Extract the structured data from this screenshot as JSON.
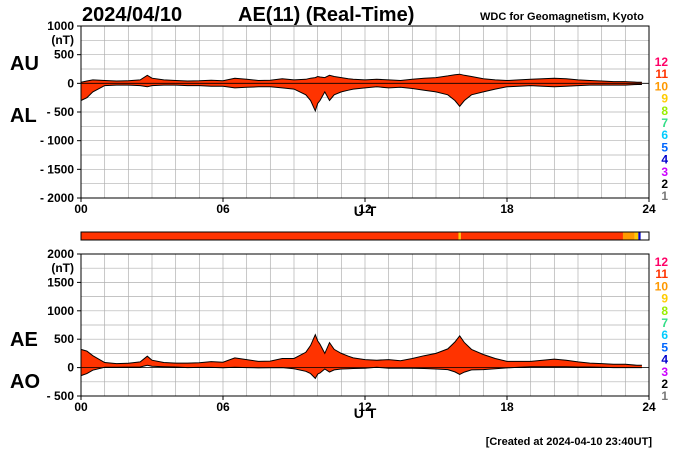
{
  "header": {
    "date": "2024/04/10",
    "title": "AE(11) (Real-Time)",
    "organization": "WDC for Geomagnetism, Kyoto"
  },
  "footer": {
    "created": "[Created at 2024-04-10 23:40UT]"
  },
  "colors": {
    "fill": "#ff3300",
    "grid": "#b0b0b0",
    "legend": [
      "#ff0066",
      "#ff3300",
      "#ff9900",
      "#ffcc00",
      "#99ee00",
      "#33dd88",
      "#00ccff",
      "#0066ff",
      "#0000cc",
      "#cc00ff",
      "#000000",
      "#777777",
      "#cccccc"
    ]
  },
  "chart_data": [
    {
      "id": "top",
      "type": "area",
      "title": "AU / AL",
      "xlabel": "U T",
      "ylabel_units": "(nT)",
      "ylim": [
        -2000,
        1000
      ],
      "yticks": [
        1000,
        500,
        0,
        -500,
        -1000,
        -1500,
        -2000
      ],
      "ytick_labels": [
        "1000",
        "500",
        "0",
        "- 500",
        "- 1000",
        "- 1500",
        "- 2000"
      ],
      "xlim": [
        0,
        24
      ],
      "xticks": [
        0,
        6,
        12,
        18,
        24
      ],
      "xtick_labels": [
        "00",
        "06",
        "12",
        "18",
        "24"
      ],
      "upper_label": "AU",
      "lower_label": "AL",
      "x": [
        0,
        0.25,
        0.5,
        1,
        1.5,
        2,
        2.5,
        2.8,
        3,
        3.5,
        4,
        4.5,
        5,
        5.5,
        6,
        6.5,
        7,
        7.5,
        8,
        8.5,
        9,
        9.5,
        9.7,
        9.9,
        10,
        10.1,
        10.3,
        10.5,
        10.7,
        11,
        11.3,
        11.5,
        12,
        12.5,
        13,
        13.5,
        14,
        14.5,
        15,
        15.5,
        15.8,
        16,
        16.2,
        16.5,
        17,
        17.5,
        18,
        18.5,
        19,
        19.5,
        20,
        20.5,
        21,
        21.5,
        22,
        22.5,
        23,
        23.5,
        23.7
      ],
      "series": [
        {
          "name": "AU",
          "values": [
            20,
            40,
            60,
            50,
            40,
            45,
            60,
            140,
            90,
            60,
            50,
            40,
            45,
            55,
            45,
            90,
            70,
            50,
            55,
            80,
            60,
            70,
            90,
            100,
            120,
            110,
            100,
            140,
            120,
            100,
            80,
            70,
            60,
            70,
            60,
            50,
            70,
            90,
            100,
            130,
            150,
            160,
            140,
            120,
            80,
            60,
            50,
            60,
            70,
            80,
            90,
            80,
            60,
            50,
            40,
            30,
            30,
            20,
            20
          ]
        },
        {
          "name": "AL",
          "values": [
            -300,
            -250,
            -150,
            -40,
            -30,
            -30,
            -40,
            -60,
            -40,
            -30,
            -30,
            -40,
            -40,
            -50,
            -50,
            -80,
            -70,
            -60,
            -60,
            -80,
            -100,
            -200,
            -300,
            -480,
            -350,
            -300,
            -150,
            -300,
            -200,
            -150,
            -120,
            -100,
            -80,
            -60,
            -80,
            -70,
            -90,
            -120,
            -150,
            -200,
            -300,
            -400,
            -300,
            -200,
            -150,
            -100,
            -60,
            -50,
            -40,
            -50,
            -60,
            -50,
            -40,
            -30,
            -30,
            -30,
            -30,
            -20,
            -20
          ]
        }
      ]
    },
    {
      "id": "bottom",
      "type": "area",
      "title": "AE / AO",
      "xlabel": "U T",
      "ylabel_units": "(nT)",
      "ylim": [
        -500,
        2000
      ],
      "yticks": [
        2000,
        1500,
        1000,
        500,
        0,
        -500
      ],
      "ytick_labels": [
        "2000",
        "1500",
        "1000",
        "500",
        "0",
        "- 500"
      ],
      "xlim": [
        0,
        24
      ],
      "xticks": [
        0,
        6,
        12,
        18,
        24
      ],
      "xtick_labels": [
        "00",
        "06",
        "12",
        "18",
        "24"
      ],
      "upper_label": "AE",
      "lower_label": "AO",
      "x": [
        0,
        0.25,
        0.5,
        1,
        1.5,
        2,
        2.5,
        2.8,
        3,
        3.5,
        4,
        4.5,
        5,
        5.5,
        6,
        6.5,
        7,
        7.5,
        8,
        8.5,
        9,
        9.5,
        9.7,
        9.9,
        10,
        10.1,
        10.3,
        10.5,
        10.7,
        11,
        11.3,
        11.5,
        12,
        12.5,
        13,
        13.5,
        14,
        14.5,
        15,
        15.5,
        15.8,
        16,
        16.2,
        16.5,
        17,
        17.5,
        18,
        18.5,
        19,
        19.5,
        20,
        20.5,
        21,
        21.5,
        22,
        22.5,
        23,
        23.5,
        23.7
      ],
      "series": [
        {
          "name": "AE",
          "values": [
            320,
            290,
            210,
            90,
            70,
            75,
            100,
            200,
            130,
            90,
            80,
            80,
            85,
            105,
            95,
            170,
            140,
            110,
            115,
            160,
            160,
            270,
            390,
            580,
            470,
            410,
            250,
            440,
            320,
            250,
            200,
            170,
            140,
            130,
            140,
            120,
            160,
            210,
            250,
            330,
            450,
            560,
            440,
            320,
            230,
            160,
            110,
            110,
            110,
            130,
            150,
            130,
            100,
            80,
            70,
            60,
            60,
            40,
            40
          ]
        },
        {
          "name": "AO",
          "values": [
            -140,
            -105,
            -45,
            5,
            5,
            8,
            10,
            40,
            25,
            15,
            10,
            0,
            3,
            3,
            -3,
            5,
            0,
            -5,
            -3,
            0,
            -20,
            -65,
            -105,
            -190,
            -115,
            -95,
            -25,
            -80,
            -40,
            -25,
            -20,
            -15,
            -10,
            5,
            -10,
            -10,
            -10,
            -15,
            -25,
            -35,
            -75,
            -120,
            -80,
            -40,
            -35,
            -20,
            -5,
            5,
            15,
            15,
            15,
            15,
            10,
            10,
            5,
            0,
            0,
            0,
            0
          ]
        }
      ]
    }
  ],
  "station_bar": {
    "segments": [
      {
        "start": 0,
        "end": 15.95,
        "color": "#ff3300"
      },
      {
        "start": 15.95,
        "end": 16.05,
        "color": "#ffcc00"
      },
      {
        "start": 16.05,
        "end": 22.9,
        "color": "#ff3300"
      },
      {
        "start": 22.9,
        "end": 23.4,
        "color": "#ff9900"
      },
      {
        "start": 23.4,
        "end": 23.55,
        "color": "#ffcc00"
      },
      {
        "start": 23.55,
        "end": 23.65,
        "color": "#0000cc"
      },
      {
        "start": 23.65,
        "end": 24,
        "color": "#ffffff"
      }
    ]
  },
  "legend": {
    "labels": [
      "12",
      "11",
      "10",
      "9",
      "8",
      "7",
      "6",
      "5",
      "4",
      "3",
      "2",
      "1"
    ]
  }
}
